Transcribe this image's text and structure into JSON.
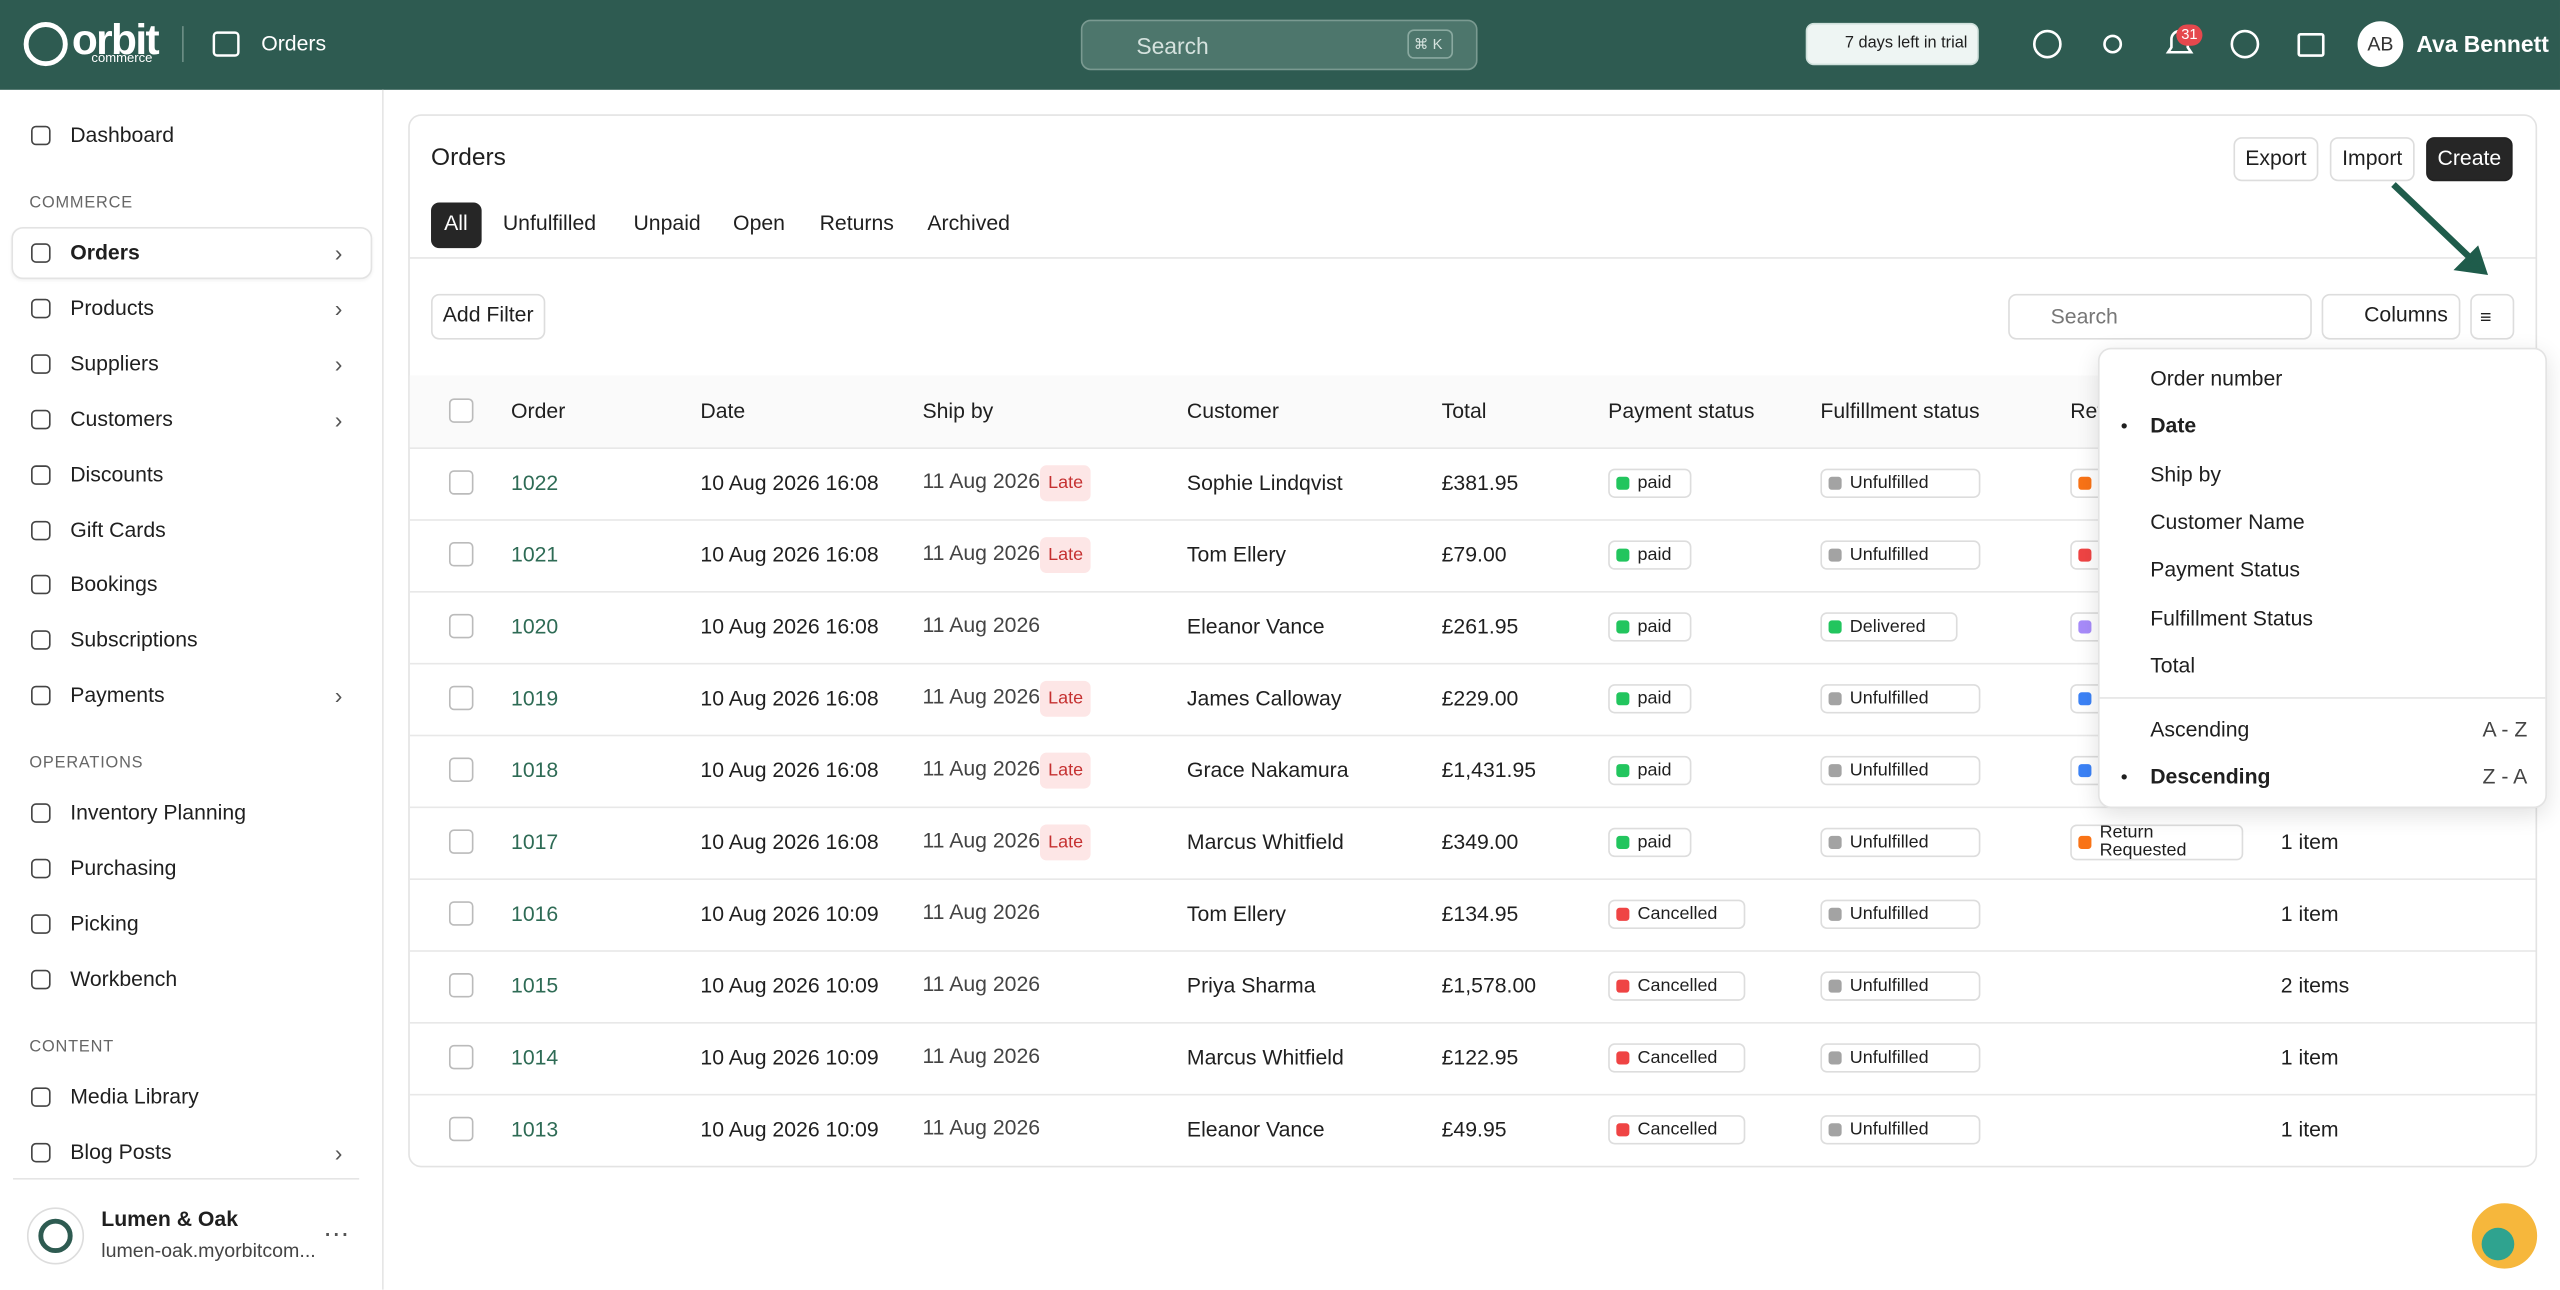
{
  "header": {
    "brand": "orbit",
    "brand_sub": "commerce",
    "page": "Orders",
    "search": "Search",
    "shortcut": "⌘ K",
    "trial": "7 days left in trial",
    "notifications": "31",
    "avatar": "AB",
    "user": "Ava Bennett"
  },
  "sidebar": {
    "sections": [
      {
        "items": [
          {
            "label": "Dashboard"
          }
        ]
      },
      {
        "title": "COMMERCE",
        "items": [
          {
            "label": "Orders",
            "active": true,
            "submenu": true
          },
          {
            "label": "Products",
            "submenu": true
          },
          {
            "label": "Suppliers",
            "submenu": true
          },
          {
            "label": "Customers",
            "submenu": true
          },
          {
            "label": "Discounts"
          },
          {
            "label": "Gift Cards"
          },
          {
            "label": "Bookings"
          },
          {
            "label": "Subscriptions"
          },
          {
            "label": "Payments",
            "submenu": true
          }
        ]
      },
      {
        "title": "OPERATIONS",
        "items": [
          {
            "label": "Inventory Planning"
          },
          {
            "label": "Purchasing"
          },
          {
            "label": "Picking"
          },
          {
            "label": "Workbench"
          }
        ]
      },
      {
        "title": "CONTENT",
        "items": [
          {
            "label": "Media Library"
          },
          {
            "label": "Blog Posts",
            "submenu": true
          }
        ]
      }
    ],
    "store": {
      "name": "Lumen & Oak",
      "domain": "lumen-oak.myorbitcom..."
    }
  },
  "main": {
    "title": "Orders",
    "actions": [
      "Export",
      "Import",
      "Create"
    ],
    "tabs": [
      "All",
      "Unfulfilled",
      "Unpaid",
      "Open",
      "Returns",
      "Archived"
    ],
    "add_filter": "Add Filter",
    "search": "Search",
    "columns": "Columns",
    "table": {
      "headers": [
        "Order",
        "Date",
        "Ship by",
        "Customer",
        "Total",
        "Payment status",
        "Fulfillment status",
        "Ret"
      ],
      "status_colors": {
        "paid": "#22c55e",
        "Cancelled": "#ef4444",
        "Unfulfilled": "#a3a3a3",
        "Delivered": "#22c55e"
      },
      "rows": [
        {
          "order": "1022",
          "date": "10 Aug 2026 16:08",
          "ship_by": "11 Aug 2026",
          "ship_flag": "Late",
          "customer": "Sophie Lindqvist",
          "total": "£381.95",
          "payment": "paid",
          "fulfillment": "Unfulfilled",
          "return_color": "#f97316"
        },
        {
          "order": "1021",
          "date": "10 Aug 2026 16:08",
          "ship_by": "11 Aug 2026",
          "ship_flag": "Late",
          "customer": "Tom Ellery",
          "total": "£79.00",
          "payment": "paid",
          "fulfillment": "Unfulfilled",
          "return_color": "#ef4444"
        },
        {
          "order": "1020",
          "date": "10 Aug 2026 16:08",
          "ship_by": "11 Aug 2026",
          "customer": "Eleanor Vance",
          "total": "£261.95",
          "payment": "paid",
          "fulfillment": "Delivered",
          "return_color": "#a78bfa"
        },
        {
          "order": "1019",
          "date": "10 Aug 2026 16:08",
          "ship_by": "11 Aug 2026",
          "ship_flag": "Late",
          "customer": "James Calloway",
          "total": "£229.00",
          "payment": "paid",
          "fulfillment": "Unfulfilled",
          "return_color": "#3b82f6"
        },
        {
          "order": "1018",
          "date": "10 Aug 2026 16:08",
          "ship_by": "11 Aug 2026",
          "ship_flag": "Late",
          "customer": "Grace Nakamura",
          "total": "£1,431.95",
          "payment": "paid",
          "fulfillment": "Unfulfilled",
          "return_color": "#3b82f6"
        },
        {
          "order": "1017",
          "date": "10 Aug 2026 16:08",
          "ship_by": "11 Aug 2026",
          "ship_flag": "Late",
          "customer": "Marcus Whitfield",
          "total": "£349.00",
          "payment": "paid",
          "fulfillment": "Unfulfilled",
          "return_color": "#f97316",
          "return_status": "Return Requested",
          "items": "1 item"
        },
        {
          "order": "1016",
          "date": "10 Aug 2026 10:09",
          "ship_by": "11 Aug 2026",
          "customer": "Tom Ellery",
          "total": "£134.95",
          "payment": "Cancelled",
          "fulfillment": "Unfulfilled",
          "items": "1 item"
        },
        {
          "order": "1015",
          "date": "10 Aug 2026 10:09",
          "ship_by": "11 Aug 2026",
          "customer": "Priya Sharma",
          "total": "£1,578.00",
          "payment": "Cancelled",
          "fulfillment": "Unfulfilled",
          "items": "2 items"
        },
        {
          "order": "1014",
          "date": "10 Aug 2026 10:09",
          "ship_by": "11 Aug 2026",
          "customer": "Marcus Whitfield",
          "total": "£122.95",
          "payment": "Cancelled",
          "fulfillment": "Unfulfilled",
          "items": "1 item"
        },
        {
          "order": "1013",
          "date": "10 Aug 2026 10:09",
          "ship_by": "11 Aug 2026",
          "customer": "Eleanor Vance",
          "total": "£49.95",
          "payment": "Cancelled",
          "fulfillment": "Unfulfilled",
          "items": "1 item"
        }
      ]
    }
  },
  "sort_menu": {
    "fields": [
      {
        "label": "Order number"
      },
      {
        "label": "Date",
        "selected": true
      },
      {
        "label": "Ship by"
      },
      {
        "label": "Customer Name"
      },
      {
        "label": "Payment Status"
      },
      {
        "label": "Fulfillment Status"
      },
      {
        "label": "Total"
      }
    ],
    "directions": [
      {
        "label": "Ascending",
        "keys": "A - Z"
      },
      {
        "label": "Descending",
        "keys": "Z - A",
        "selected": true
      }
    ]
  }
}
